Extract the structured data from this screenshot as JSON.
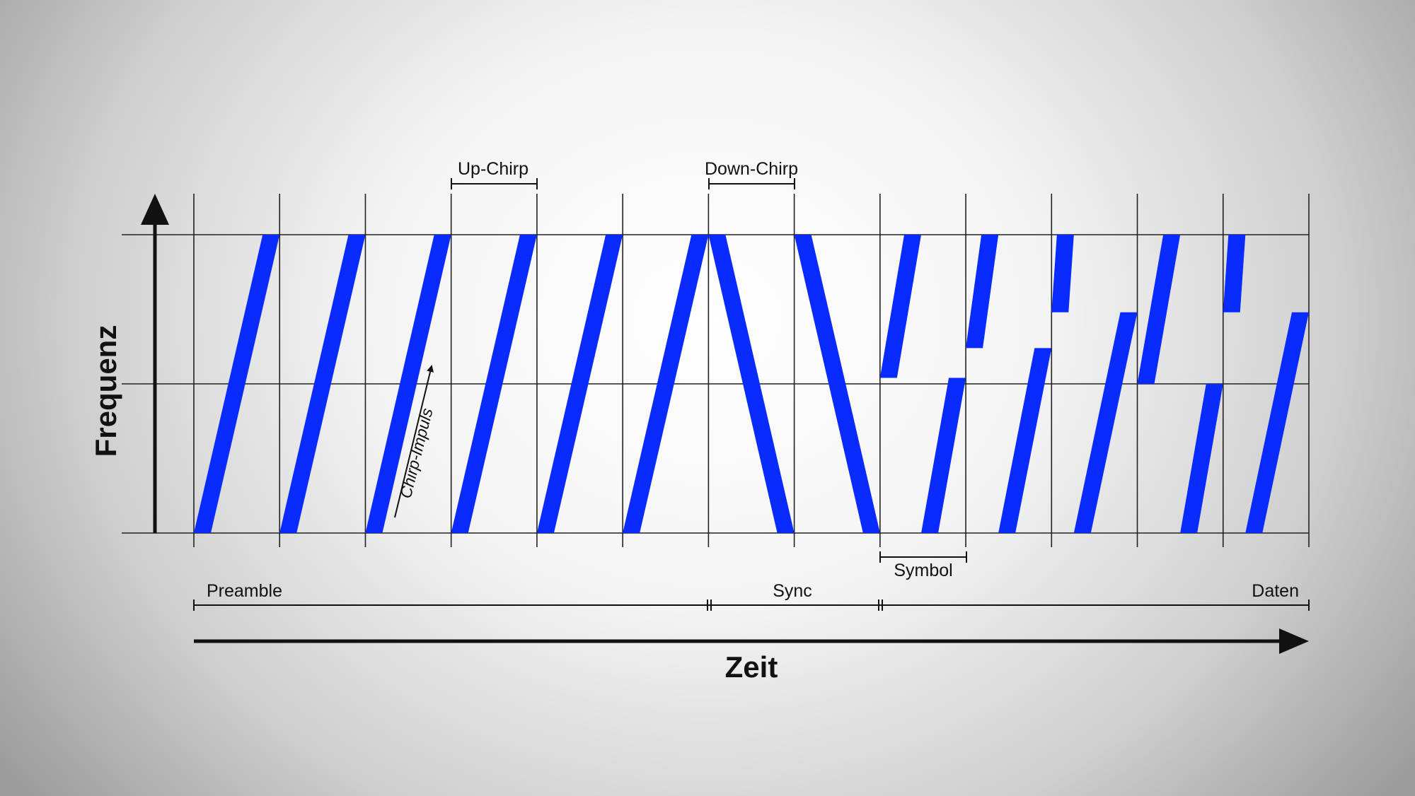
{
  "axes": {
    "y_label": "Frequenz",
    "x_label": "Zeit"
  },
  "annotations": {
    "up_chirp": "Up-Chirp",
    "down_chirp": "Down-Chirp",
    "chirp_impuls": "Chirp-Impuls",
    "symbol": "Symbol"
  },
  "sections": {
    "preamble": "Preamble",
    "sync": "Sync",
    "daten": "Daten"
  },
  "colors": {
    "chirp": "#0a2bff",
    "grid": "#222222",
    "text": "#111111"
  },
  "chirps": {
    "slots": 13,
    "up_slots": [
      0,
      1,
      2,
      3,
      4,
      5
    ],
    "down_slots": [
      6,
      7
    ],
    "data_start_fractions": [
      0.52,
      0.62,
      0.74,
      0.5,
      0.74
    ]
  }
}
